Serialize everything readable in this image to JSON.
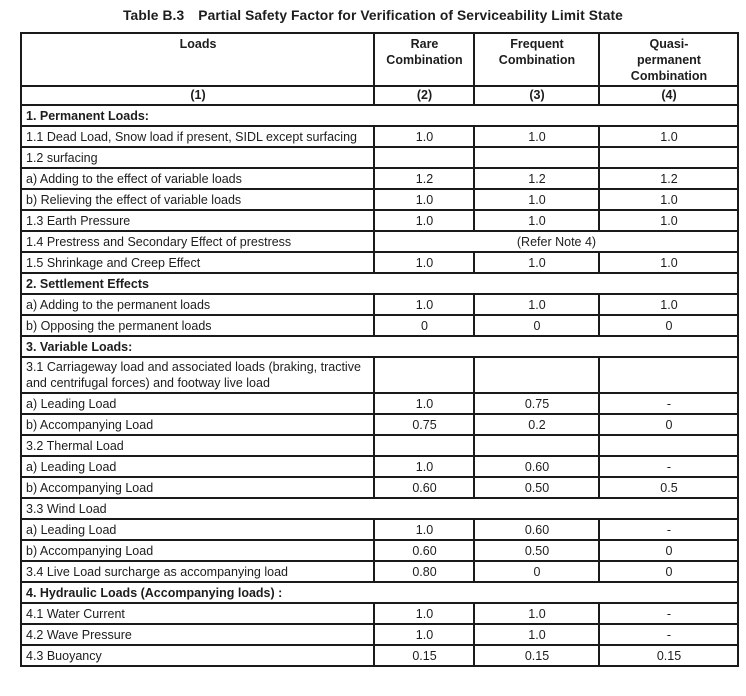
{
  "title": {
    "label": "Table B.3",
    "text": "Partial Safety Factor for Verification of Serviceability Limit State"
  },
  "table": {
    "columns": [
      {
        "label": "Loads",
        "sub": "(1)"
      },
      {
        "label": "Rare Combination",
        "sub": "(2)"
      },
      {
        "label": "Frequent Combination",
        "sub": "(3)"
      },
      {
        "label": "Quasi- permanent Combination",
        "sub": "(4)"
      }
    ],
    "rows": [
      {
        "type": "section",
        "label": "1. Permanent Loads:"
      },
      {
        "type": "data",
        "label": "1.1 Dead Load, Snow load if present, SIDL except surfacing",
        "values": [
          "1.0",
          "1.0",
          "1.0"
        ]
      },
      {
        "type": "data",
        "label": "1.2 surfacing",
        "values": [
          "",
          "",
          ""
        ]
      },
      {
        "type": "data",
        "label": "a) Adding to the effect of variable loads",
        "values": [
          "1.2",
          "1.2",
          "1.2"
        ]
      },
      {
        "type": "data",
        "label": "b) Relieving the effect of variable loads",
        "values": [
          "1.0",
          "1.0",
          "1.0"
        ]
      },
      {
        "type": "data",
        "label": "1.3 Earth Pressure",
        "values": [
          "1.0",
          "1.0",
          "1.0"
        ]
      },
      {
        "type": "merged",
        "label": "1.4 Prestress and Secondary Effect of prestress",
        "merged_value": "(Refer Note 4)"
      },
      {
        "type": "data",
        "label": "1.5 Shrinkage and Creep Effect",
        "values": [
          "1.0",
          "1.0",
          "1.0"
        ]
      },
      {
        "type": "section",
        "label": "2. Settlement Effects"
      },
      {
        "type": "data",
        "label": "a) Adding to the permanent loads",
        "values": [
          "1.0",
          "1.0",
          "1.0"
        ]
      },
      {
        "type": "data",
        "label": "b) Opposing the permanent loads",
        "values": [
          "0",
          "0",
          "0"
        ]
      },
      {
        "type": "section",
        "label": "3. Variable Loads:"
      },
      {
        "type": "data",
        "label": "3.1 Carriageway load and associated loads (braking, tractive and centrifugal forces) and footway live load",
        "values": [
          "",
          "",
          ""
        ]
      },
      {
        "type": "data",
        "label": "a) Leading Load",
        "values": [
          "1.0",
          "0.75",
          "-"
        ]
      },
      {
        "type": "data",
        "label": "b) Accompanying Load",
        "values": [
          "0.75",
          "0.2",
          "0"
        ]
      },
      {
        "type": "data",
        "label": "3.2 Thermal Load",
        "values": [
          "",
          "",
          ""
        ]
      },
      {
        "type": "data",
        "label": "a) Leading Load",
        "values": [
          "1.0",
          "0.60",
          "-"
        ]
      },
      {
        "type": "data",
        "label": "b) Accompanying Load",
        "values": [
          "0.60",
          "0.50",
          "0.5"
        ]
      },
      {
        "type": "span",
        "label": "3.3 Wind Load"
      },
      {
        "type": "data",
        "label": "a) Leading Load",
        "values": [
          "1.0",
          "0.60",
          "-"
        ]
      },
      {
        "type": "data",
        "label": "b) Accompanying Load",
        "values": [
          "0.60",
          "0.50",
          "0"
        ]
      },
      {
        "type": "data",
        "label": "3.4 Live Load surcharge as accompanying load",
        "values": [
          "0.80",
          "0",
          "0"
        ]
      },
      {
        "type": "section",
        "label": "4. Hydraulic Loads (Accompanying loads) :"
      },
      {
        "type": "data",
        "label": "4.1 Water Current",
        "values": [
          "1.0",
          "1.0",
          "-"
        ]
      },
      {
        "type": "data",
        "label": "4.2 Wave Pressure",
        "values": [
          "1.0",
          "1.0",
          "-"
        ]
      },
      {
        "type": "data",
        "label": "4.3 Buoyancy",
        "values": [
          "0.15",
          "0.15",
          "0.15"
        ]
      }
    ]
  },
  "colors": {
    "border": "#1a1a1a",
    "text": "#1d1d1d",
    "background": "#ffffff"
  }
}
